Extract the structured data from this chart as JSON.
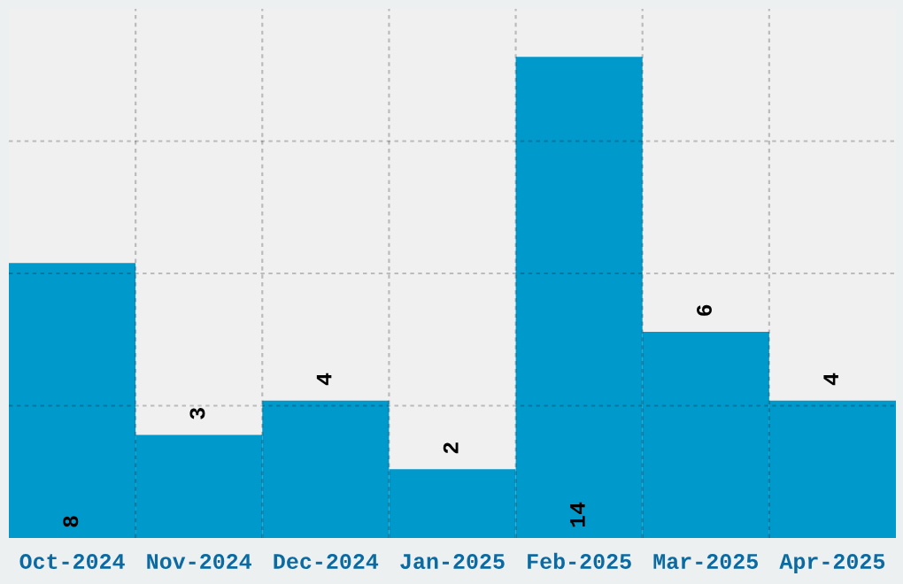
{
  "chart_data": {
    "type": "bar",
    "categories": [
      "Oct-2024",
      "Nov-2024",
      "Dec-2024",
      "Jan-2025",
      "Feb-2025",
      "Mar-2025",
      "Apr-2025"
    ],
    "values": [
      8,
      3,
      4,
      2,
      14,
      6,
      4
    ],
    "color": "#0099cc",
    "ylim": [
      0,
      15.4
    ],
    "yticks": [
      {
        "value": 3.85,
        "label": null
      },
      {
        "value": 7.7,
        "label": null
      },
      {
        "value": 11.55,
        "label": null
      }
    ],
    "grid": true,
    "data_labels": true,
    "tick_labels": "x"
  }
}
